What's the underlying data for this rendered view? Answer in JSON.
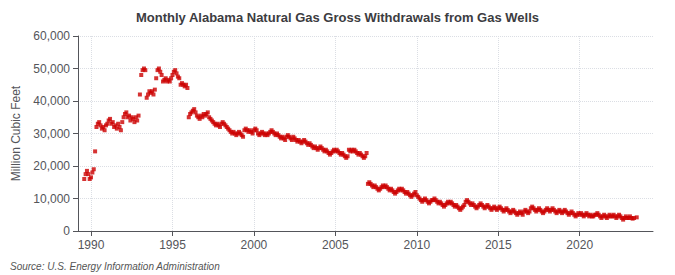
{
  "chart_data": {
    "type": "scatter",
    "title": "Monthly Alabama Natural Gas Gross Withdrawals from Gas Wells",
    "ylabel": "Million Cubic Feet",
    "annotations": [
      "Source: U.S. Energy Information Administration"
    ],
    "color": "#cc0000",
    "marker": "square",
    "grid": true,
    "xlim": [
      1989.2,
      2024.5
    ],
    "xticks": [
      1990,
      1995,
      2000,
      2005,
      2010,
      2015,
      2020
    ],
    "ylim": [
      0,
      60000
    ],
    "yticks": [
      0,
      {
        "value": 10000,
        "label": "10,000"
      },
      {
        "value": 20000,
        "label": "20,000"
      },
      {
        "value": 30000,
        "label": "30,000"
      },
      {
        "value": 40000,
        "label": "40,000"
      },
      {
        "value": 50000,
        "label": "50,000"
      },
      {
        "value": 60000,
        "label": "60,000"
      }
    ],
    "x": [
      1989.583,
      1989.667,
      1989.75,
      1989.833,
      1989.917,
      1990.0,
      1990.083,
      1990.167,
      1990.25,
      1990.333,
      1990.417,
      1990.5,
      1990.583,
      1990.667,
      1990.75,
      1990.833,
      1990.917,
      1991.0,
      1991.083,
      1991.167,
      1991.25,
      1991.333,
      1991.417,
      1991.5,
      1991.583,
      1991.667,
      1991.75,
      1991.833,
      1991.917,
      1992.0,
      1992.083,
      1992.167,
      1992.25,
      1992.333,
      1992.417,
      1992.5,
      1992.583,
      1992.667,
      1992.75,
      1992.833,
      1992.917,
      1993.0,
      1993.083,
      1993.167,
      1993.25,
      1993.333,
      1993.417,
      1993.5,
      1993.583,
      1993.667,
      1993.75,
      1993.833,
      1993.917,
      1994.0,
      1994.083,
      1994.167,
      1994.25,
      1994.333,
      1994.417,
      1994.5,
      1994.583,
      1994.667,
      1994.75,
      1994.833,
      1994.917,
      1995.0,
      1995.083,
      1995.167,
      1995.25,
      1995.333,
      1995.417,
      1995.5,
      1995.583,
      1995.667,
      1995.75,
      1995.833,
      1995.917,
      1996.0,
      1996.083,
      1996.167,
      1996.25,
      1996.333,
      1996.417,
      1996.5,
      1996.583,
      1996.667,
      1996.75,
      1996.833,
      1996.917,
      1997.0,
      1997.083,
      1997.167,
      1997.25,
      1997.333,
      1997.417,
      1997.5,
      1997.583,
      1997.667,
      1997.75,
      1997.833,
      1997.917,
      1998.0,
      1998.083,
      1998.167,
      1998.25,
      1998.333,
      1998.417,
      1998.5,
      1998.583,
      1998.667,
      1998.75,
      1998.833,
      1998.917,
      1999.0,
      1999.083,
      1999.167,
      1999.25,
      1999.333,
      1999.417,
      1999.5,
      1999.583,
      1999.667,
      1999.75,
      1999.833,
      1999.917,
      2000.0,
      2000.083,
      2000.167,
      2000.25,
      2000.333,
      2000.417,
      2000.5,
      2000.583,
      2000.667,
      2000.75,
      2000.833,
      2000.917,
      2001.0,
      2001.083,
      2001.167,
      2001.25,
      2001.333,
      2001.417,
      2001.5,
      2001.583,
      2001.667,
      2001.75,
      2001.833,
      2001.917,
      2002.0,
      2002.083,
      2002.167,
      2002.25,
      2002.333,
      2002.417,
      2002.5,
      2002.583,
      2002.667,
      2002.75,
      2002.833,
      2002.917,
      2003.0,
      2003.083,
      2003.167,
      2003.25,
      2003.333,
      2003.417,
      2003.5,
      2003.583,
      2003.667,
      2003.75,
      2003.833,
      2003.917,
      2004.0,
      2004.083,
      2004.167,
      2004.25,
      2004.333,
      2004.417,
      2004.5,
      2004.583,
      2004.667,
      2004.75,
      2004.833,
      2004.917,
      2005.0,
      2005.083,
      2005.167,
      2005.25,
      2005.333,
      2005.417,
      2005.5,
      2005.583,
      2005.667,
      2005.75,
      2005.833,
      2005.917,
      2006.0,
      2006.083,
      2006.167,
      2006.25,
      2006.333,
      2006.417,
      2006.5,
      2006.583,
      2006.667,
      2006.75,
      2006.833,
      2006.917,
      2007.0,
      2007.083,
      2007.167,
      2007.25,
      2007.333,
      2007.417,
      2007.5,
      2007.583,
      2007.667,
      2007.75,
      2007.833,
      2007.917,
      2008.0,
      2008.083,
      2008.167,
      2008.25,
      2008.333,
      2008.417,
      2008.5,
      2008.583,
      2008.667,
      2008.75,
      2008.833,
      2008.917,
      2009.0,
      2009.083,
      2009.167,
      2009.25,
      2009.333,
      2009.417,
      2009.5,
      2009.583,
      2009.667,
      2009.75,
      2009.833,
      2009.917,
      2010.0,
      2010.083,
      2010.167,
      2010.25,
      2010.333,
      2010.417,
      2010.5,
      2010.583,
      2010.667,
      2010.75,
      2010.833,
      2010.917,
      2011.0,
      2011.083,
      2011.167,
      2011.25,
      2011.333,
      2011.417,
      2011.5,
      2011.583,
      2011.667,
      2011.75,
      2011.833,
      2011.917,
      2012.0,
      2012.083,
      2012.167,
      2012.25,
      2012.333,
      2012.417,
      2012.5,
      2012.583,
      2012.667,
      2012.75,
      2012.833,
      2012.917,
      2013.0,
      2013.083,
      2013.167,
      2013.25,
      2013.333,
      2013.417,
      2013.5,
      2013.583,
      2013.667,
      2013.75,
      2013.833,
      2013.917,
      2014.0,
      2014.083,
      2014.167,
      2014.25,
      2014.333,
      2014.417,
      2014.5,
      2014.583,
      2014.667,
      2014.75,
      2014.833,
      2014.917,
      2015.0,
      2015.083,
      2015.167,
      2015.25,
      2015.333,
      2015.417,
      2015.5,
      2015.583,
      2015.667,
      2015.75,
      2015.833,
      2015.917,
      2016.0,
      2016.083,
      2016.167,
      2016.25,
      2016.333,
      2016.417,
      2016.5,
      2016.583,
      2016.667,
      2016.75,
      2016.833,
      2016.917,
      2017.0,
      2017.083,
      2017.167,
      2017.25,
      2017.333,
      2017.417,
      2017.5,
      2017.583,
      2017.667,
      2017.75,
      2017.833,
      2017.917,
      2018.0,
      2018.083,
      2018.167,
      2018.25,
      2018.333,
      2018.417,
      2018.5,
      2018.583,
      2018.667,
      2018.75,
      2018.833,
      2018.917,
      2019.0,
      2019.083,
      2019.167,
      2019.25,
      2019.333,
      2019.417,
      2019.5,
      2019.583,
      2019.667,
      2019.75,
      2019.833,
      2019.917,
      2020.0,
      2020.083,
      2020.167,
      2020.25,
      2020.333,
      2020.417,
      2020.5,
      2020.583,
      2020.667,
      2020.75,
      2020.833,
      2020.917,
      2021.0,
      2021.083,
      2021.167,
      2021.25,
      2021.333,
      2021.417,
      2021.5,
      2021.583,
      2021.667,
      2021.75,
      2021.833,
      2021.917,
      2022.0,
      2022.083,
      2022.167,
      2022.25,
      2022.333,
      2022.417,
      2022.5,
      2022.583,
      2022.667,
      2022.75,
      2022.833,
      2022.917,
      2023.0,
      2023.083,
      2023.167,
      2023.25,
      2023.333,
      2023.5
    ],
    "values": [
      16000,
      17500,
      18500,
      17500,
      16000,
      16500,
      18000,
      19000,
      24500,
      32000,
      33000,
      33500,
      32500,
      31500,
      32000,
      31000,
      32500,
      33000,
      34000,
      34500,
      33000,
      33500,
      32000,
      32500,
      31500,
      33000,
      32000,
      31000,
      33500,
      35000,
      36000,
      36500,
      35000,
      35500,
      34000,
      35000,
      34500,
      33500,
      35000,
      34000,
      35500,
      42000,
      48000,
      49500,
      50000,
      49500,
      41000,
      42000,
      43000,
      42500,
      43000,
      42000,
      43500,
      47000,
      49500,
      50000,
      49000,
      48000,
      46000,
      46500,
      47000,
      46000,
      46500,
      46000,
      47000,
      48000,
      49000,
      49500,
      48500,
      47500,
      47000,
      45000,
      45500,
      45000,
      44500,
      45000,
      44000,
      35000,
      36000,
      36500,
      37000,
      37500,
      36500,
      35500,
      35000,
      34500,
      35500,
      35000,
      36000,
      35500,
      36000,
      36500,
      35000,
      34500,
      34000,
      33500,
      33000,
      32500,
      33000,
      32500,
      32000,
      33000,
      33500,
      33000,
      32500,
      32000,
      31500,
      31000,
      30500,
      30000,
      30500,
      30000,
      29500,
      30000,
      30500,
      30000,
      29500,
      29000,
      31000,
      31500,
      31000,
      30500,
      31000,
      30500,
      30000,
      31000,
      31500,
      31000,
      30000,
      29500,
      30000,
      30500,
      30000,
      29500,
      30000,
      29500,
      30000,
      30500,
      31000,
      30500,
      30000,
      29500,
      30000,
      29500,
      29000,
      28500,
      29000,
      28500,
      28000,
      29000,
      29500,
      29000,
      28500,
      28000,
      29000,
      28500,
      28000,
      27500,
      28000,
      27500,
      27000,
      27500,
      28000,
      27500,
      27000,
      26500,
      27000,
      26500,
      26000,
      25500,
      26000,
      25500,
      25000,
      25500,
      26000,
      25500,
      25000,
      24500,
      25000,
      24500,
      24000,
      23500,
      24000,
      24500,
      25000,
      24500,
      25000,
      24500,
      24000,
      23500,
      24000,
      23500,
      23000,
      22500,
      23000,
      25000,
      24500,
      25000,
      24500,
      25000,
      24500,
      24000,
      23500,
      24000,
      23500,
      23000,
      22500,
      23000,
      24000,
      14500,
      15000,
      14500,
      14000,
      13500,
      14000,
      13500,
      13000,
      12500,
      13000,
      13500,
      14000,
      13500,
      14000,
      13500,
      13000,
      12500,
      13000,
      12500,
      12000,
      11500,
      12000,
      12500,
      13000,
      12500,
      13000,
      12500,
      12000,
      11500,
      12000,
      11500,
      11000,
      10500,
      11000,
      11500,
      12000,
      11000,
      10500,
      10000,
      9500,
      9000,
      9500,
      10000,
      9500,
      9000,
      8500,
      9000,
      9500,
      9500,
      10000,
      9500,
      9000,
      8500,
      9000,
      8500,
      8000,
      7500,
      8000,
      8500,
      9000,
      8500,
      9000,
      8500,
      8000,
      7500,
      8000,
      7500,
      7000,
      6500,
      7000,
      7500,
      8000,
      9000,
      9500,
      9000,
      8500,
      8000,
      8500,
      8000,
      7500,
      7000,
      7500,
      8000,
      8500,
      8000,
      7500,
      7000,
      7500,
      8000,
      7500,
      7000,
      6500,
      7000,
      7500,
      7000,
      6500,
      7000,
      7500,
      7000,
      6500,
      6000,
      6500,
      7000,
      6500,
      6000,
      5500,
      6000,
      6500,
      6000,
      5500,
      5000,
      5500,
      6000,
      5500,
      5000,
      6000,
      6500,
      6000,
      5500,
      6000,
      7000,
      7500,
      7000,
      6500,
      6000,
      6500,
      7000,
      6500,
      6000,
      5500,
      6000,
      6500,
      7000,
      6500,
      6000,
      6500,
      7000,
      6500,
      6000,
      5500,
      6000,
      6500,
      6000,
      5500,
      6000,
      6500,
      6000,
      5500,
      5000,
      5500,
      6000,
      5500,
      5000,
      4500,
      5000,
      5500,
      5000,
      5500,
      5000,
      4500,
      5000,
      5500,
      5000,
      4500,
      5000,
      4500,
      4500,
      5000,
      5000,
      5500,
      5000,
      4500,
      4000,
      4500,
      5000,
      4500,
      4000,
      4500,
      5000,
      4500,
      4500,
      5000,
      4500,
      4000,
      4500,
      5000,
      4500,
      4000,
      3500,
      4000,
      4500,
      4000,
      4000,
      4500,
      4000,
      3800,
      4000,
      4200
    ]
  }
}
